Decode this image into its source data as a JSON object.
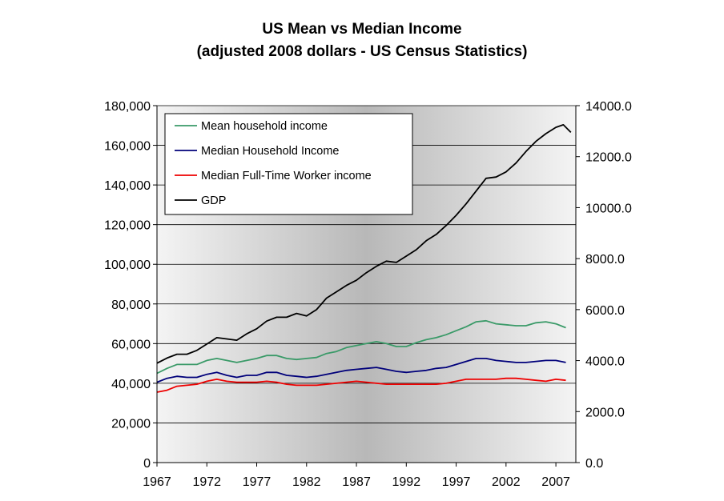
{
  "chart_data": {
    "type": "line",
    "title": "US Mean vs Median Income",
    "subtitle": "(adjusted 2008 dollars - US Census Statistics)",
    "xlabel": "",
    "ylabel": "",
    "y2label": "",
    "xlim": [
      1967,
      2009
    ],
    "ylim": [
      0,
      180000
    ],
    "y2lim": [
      0,
      14000
    ],
    "x_ticks": [
      1967,
      1972,
      1977,
      1982,
      1987,
      1992,
      1997,
      2002,
      2007
    ],
    "x_tick_labels": [
      "1967",
      "1972",
      "1977",
      "1982",
      "1987",
      "1992",
      "1997",
      "2002",
      "2007"
    ],
    "y_ticks": [
      0,
      20000,
      40000,
      60000,
      80000,
      100000,
      120000,
      140000,
      160000,
      180000
    ],
    "y_tick_labels": [
      "0",
      "20,000",
      "40,000",
      "60,000",
      "80,000",
      "100,000",
      "120,000",
      "140,000",
      "160,000",
      "180,000"
    ],
    "y2_ticks": [
      0,
      2000,
      4000,
      6000,
      8000,
      10000,
      12000,
      14000
    ],
    "y2_tick_labels": [
      "0.0",
      "2000.0",
      "4000.0",
      "6000.0",
      "8000.0",
      "10000.0",
      "12000.0",
      "14000.0"
    ],
    "grid": true,
    "legend_position": "top-left",
    "series": [
      {
        "name": "Mean household income",
        "axis": "left",
        "color": "#3a9a68",
        "x": [
          1967,
          1968,
          1969,
          1970,
          1971,
          1972,
          1973,
          1974,
          1975,
          1976,
          1977,
          1978,
          1979,
          1980,
          1981,
          1982,
          1983,
          1984,
          1985,
          1986,
          1987,
          1988,
          1989,
          1990,
          1991,
          1992,
          1993,
          1994,
          1995,
          1996,
          1997,
          1998,
          1999,
          2000,
          2001,
          2002,
          2003,
          2004,
          2005,
          2006,
          2007,
          2008
        ],
        "values": [
          45000,
          47500,
          49500,
          49500,
          49500,
          51500,
          52500,
          51500,
          50500,
          51500,
          52500,
          54000,
          54000,
          52500,
          52000,
          52500,
          53000,
          55000,
          56000,
          58000,
          59000,
          60000,
          61000,
          60000,
          58500,
          58500,
          60500,
          62000,
          63000,
          64500,
          66500,
          68500,
          71000,
          71500,
          70000,
          69500,
          69000,
          69000,
          70500,
          71000,
          70000,
          68000
        ]
      },
      {
        "name": "Median Household Income",
        "axis": "left",
        "color": "#00007a",
        "x": [
          1967,
          1968,
          1969,
          1970,
          1971,
          1972,
          1973,
          1974,
          1975,
          1976,
          1977,
          1978,
          1979,
          1980,
          1981,
          1982,
          1983,
          1984,
          1985,
          1986,
          1987,
          1988,
          1989,
          1990,
          1991,
          1992,
          1993,
          1994,
          1995,
          1996,
          1997,
          1998,
          1999,
          2000,
          2001,
          2002,
          2003,
          2004,
          2005,
          2006,
          2007,
          2008
        ],
        "values": [
          40500,
          42500,
          43500,
          43000,
          43000,
          44500,
          45500,
          44000,
          43000,
          44000,
          44000,
          45500,
          45500,
          44000,
          43500,
          43000,
          43500,
          44500,
          45500,
          46500,
          47000,
          47500,
          48000,
          47000,
          46000,
          45500,
          46000,
          46500,
          47500,
          48000,
          49500,
          51000,
          52500,
          52500,
          51500,
          51000,
          50500,
          50500,
          51000,
          51500,
          51500,
          50500
        ]
      },
      {
        "name": "Median Full-Time Worker income",
        "axis": "left",
        "color": "#ee0000",
        "x": [
          1967,
          1968,
          1969,
          1970,
          1971,
          1972,
          1973,
          1974,
          1975,
          1976,
          1977,
          1978,
          1979,
          1980,
          1981,
          1982,
          1983,
          1984,
          1985,
          1986,
          1987,
          1988,
          1989,
          1990,
          1991,
          1992,
          1993,
          1994,
          1995,
          1996,
          1997,
          1998,
          1999,
          2000,
          2001,
          2002,
          2003,
          2004,
          2005,
          2006,
          2007,
          2008
        ],
        "values": [
          35500,
          36500,
          38500,
          39000,
          39500,
          41000,
          42000,
          41000,
          40500,
          40500,
          40500,
          41000,
          40500,
          39500,
          39000,
          39000,
          39000,
          39500,
          40000,
          40500,
          41000,
          40500,
          40000,
          39500,
          39500,
          39500,
          39500,
          39500,
          39500,
          40000,
          41000,
          42000,
          42000,
          42000,
          42000,
          42500,
          42500,
          42000,
          41500,
          41000,
          42000,
          41500
        ]
      },
      {
        "name": "GDP",
        "axis": "right",
        "color": "#000000",
        "x": [
          1967,
          1968,
          1969,
          1970,
          1971,
          1972,
          1973,
          1974,
          1975,
          1976,
          1977,
          1978,
          1979,
          1980,
          1981,
          1982,
          1983,
          1984,
          1985,
          1986,
          1987,
          1988,
          1989,
          1990,
          1991,
          1992,
          1993,
          1994,
          1995,
          1996,
          1997,
          1998,
          1999,
          2000,
          2001,
          2002,
          2003,
          2004,
          2005,
          2006,
          2007,
          2007.75,
          2008.5
        ],
        "values": [
          3900,
          4100,
          4250,
          4250,
          4400,
          4650,
          4900,
          4850,
          4800,
          5050,
          5250,
          5550,
          5700,
          5700,
          5850,
          5750,
          6000,
          6450,
          6700,
          6950,
          7150,
          7450,
          7700,
          7900,
          7850,
          8100,
          8350,
          8700,
          8950,
          9300,
          9700,
          10150,
          10650,
          11150,
          11200,
          11400,
          11750,
          12200,
          12600,
          12900,
          13150,
          13250,
          12950
        ]
      }
    ]
  }
}
